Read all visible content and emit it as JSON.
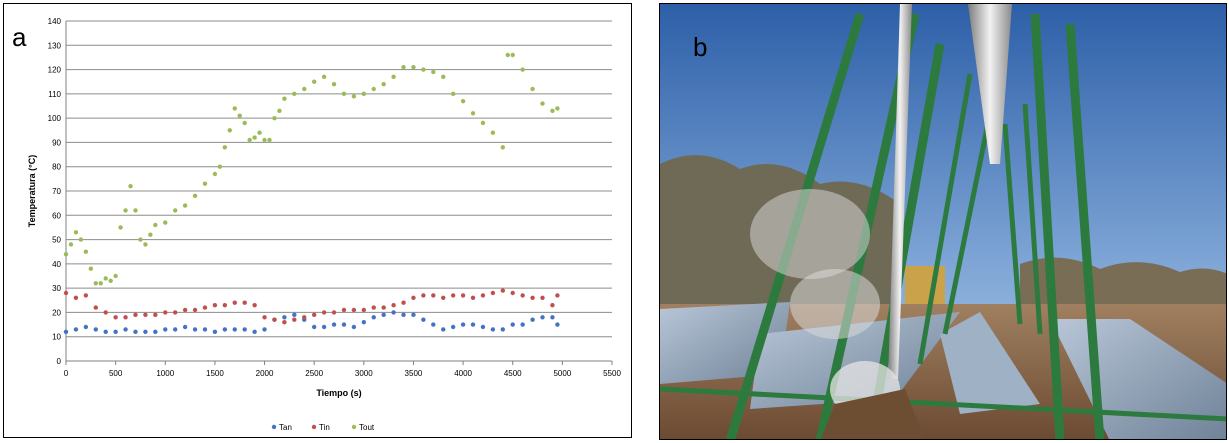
{
  "panel_a_label": "a",
  "panel_b_label": "b",
  "chart_data": {
    "type": "scatter",
    "xlabel": "Tiempo (s)",
    "ylabel": "Temperatura (°C)",
    "xlim": [
      0,
      5500
    ],
    "ylim": [
      0,
      140
    ],
    "xticks": [
      0,
      500,
      1000,
      1500,
      2000,
      2500,
      3000,
      3500,
      4000,
      4500,
      5000,
      5500
    ],
    "yticks": [
      0,
      10,
      20,
      30,
      40,
      50,
      60,
      70,
      80,
      90,
      100,
      110,
      120,
      130,
      140
    ],
    "grid": "horizontal",
    "legend": "bottom",
    "series": [
      {
        "name": "Tan",
        "color": "#4472C4",
        "x": [
          0,
          100,
          200,
          300,
          400,
          500,
          600,
          700,
          800,
          900,
          1000,
          1100,
          1200,
          1300,
          1400,
          1500,
          1600,
          1700,
          1800,
          1900,
          2000,
          2100,
          2200,
          2300,
          2400,
          2500,
          2600,
          2700,
          2800,
          2900,
          3000,
          3100,
          3200,
          3300,
          3400,
          3500,
          3600,
          3700,
          3800,
          3900,
          4000,
          4100,
          4200,
          4300,
          4400,
          4500,
          4600,
          4700,
          4800,
          4900,
          4950
        ],
        "y": [
          12,
          13,
          14,
          13,
          12,
          12,
          13,
          12,
          12,
          12,
          13,
          13,
          14,
          13,
          13,
          12,
          13,
          13,
          13,
          12,
          13,
          17,
          18,
          19,
          17,
          14,
          14,
          15,
          15,
          14,
          16,
          18,
          19,
          20,
          19,
          19,
          17,
          15,
          13,
          14,
          15,
          15,
          14,
          13,
          13,
          15,
          15,
          17,
          18,
          18,
          15
        ]
      },
      {
        "name": "Tin",
        "color": "#C0504D",
        "x": [
          0,
          100,
          200,
          300,
          400,
          500,
          600,
          700,
          800,
          900,
          1000,
          1100,
          1200,
          1300,
          1400,
          1500,
          1600,
          1700,
          1800,
          1900,
          2000,
          2100,
          2200,
          2300,
          2400,
          2500,
          2600,
          2700,
          2800,
          2900,
          3000,
          3100,
          3200,
          3300,
          3400,
          3500,
          3600,
          3700,
          3800,
          3900,
          4000,
          4100,
          4200,
          4300,
          4400,
          4500,
          4600,
          4700,
          4800,
          4900,
          4950
        ],
        "y": [
          28,
          26,
          27,
          22,
          20,
          18,
          18,
          19,
          19,
          19,
          20,
          20,
          21,
          21,
          22,
          23,
          23,
          24,
          24,
          23,
          18,
          17,
          16,
          17,
          18,
          19,
          20,
          20,
          21,
          21,
          21,
          22,
          22,
          23,
          24,
          26,
          27,
          27,
          26,
          27,
          27,
          26,
          27,
          28,
          29,
          28,
          27,
          26,
          26,
          23,
          27
        ]
      },
      {
        "name": "Tout",
        "color": "#9BBB59",
        "x": [
          0,
          50,
          100,
          150,
          200,
          250,
          300,
          350,
          400,
          450,
          500,
          550,
          600,
          650,
          700,
          750,
          800,
          850,
          900,
          1000,
          1100,
          1200,
          1300,
          1400,
          1500,
          1550,
          1600,
          1650,
          1700,
          1750,
          1800,
          1850,
          1900,
          1950,
          2000,
          2050,
          2100,
          2150,
          2200,
          2300,
          2400,
          2500,
          2600,
          2700,
          2800,
          2900,
          3000,
          3100,
          3200,
          3300,
          3400,
          3500,
          3600,
          3700,
          3800,
          3900,
          4000,
          4100,
          4200,
          4300,
          4400,
          4450,
          4500,
          4600,
          4700,
          4800,
          4900,
          4950
        ],
        "y": [
          44,
          48,
          53,
          50,
          45,
          38,
          32,
          32,
          34,
          33,
          35,
          55,
          62,
          72,
          62,
          50,
          48,
          52,
          56,
          57,
          62,
          64,
          68,
          73,
          77,
          80,
          88,
          95,
          104,
          101,
          98,
          91,
          92,
          94,
          91,
          91,
          100,
          103,
          108,
          110,
          112,
          115,
          117,
          114,
          110,
          109,
          110,
          112,
          114,
          117,
          121,
          121,
          120,
          119,
          117,
          110,
          107,
          102,
          98,
          94,
          88,
          126,
          126,
          120,
          112,
          106,
          103,
          104
        ]
      }
    ]
  }
}
